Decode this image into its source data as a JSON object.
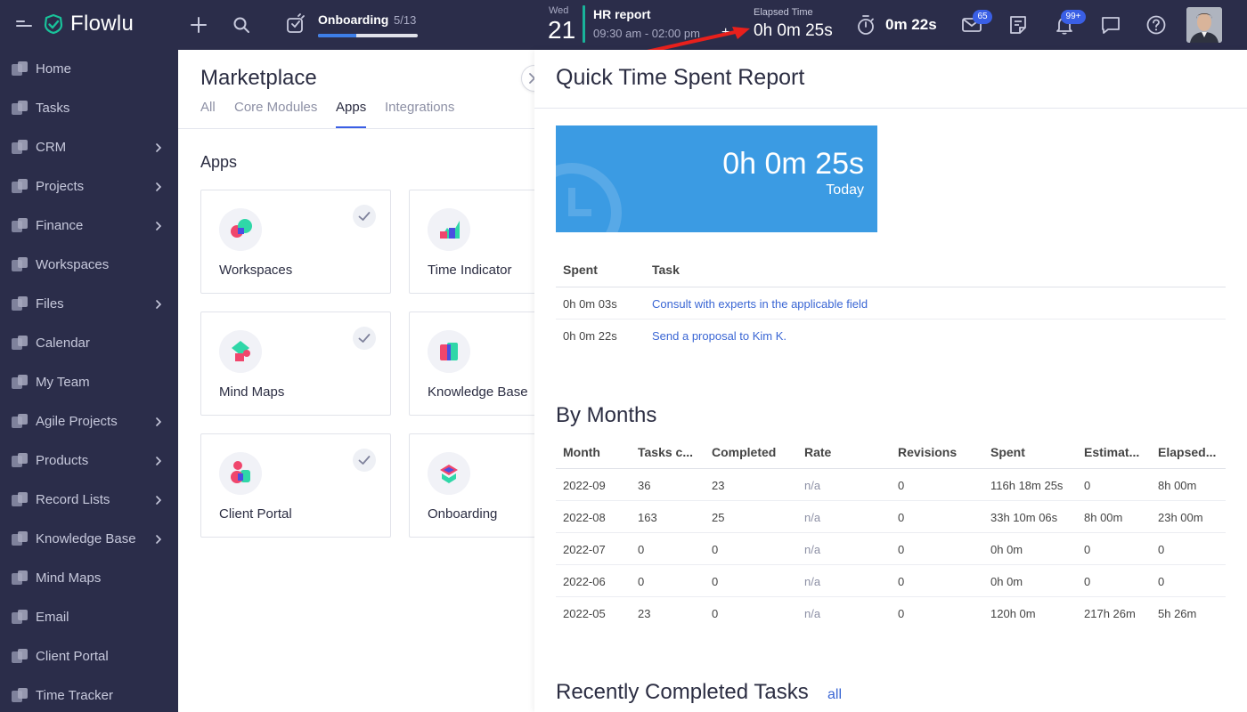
{
  "topbar": {
    "logo": "Flowlu",
    "onboarding_label": "Onboarding",
    "onboarding_count": "5/13",
    "onboarding_progress": 0.38,
    "calendar_day_name": "Wed",
    "calendar_day_number": "21",
    "event_title": "HR report",
    "event_time": "09:30 am - 02:00 pm",
    "elapsed_label": "Elapsed Time",
    "elapsed_value": "0h 0m 25s",
    "timer_value": "0m 22s",
    "mail_badge": "65",
    "notifications_badge": "99+"
  },
  "sidebar": {
    "items": [
      {
        "label": "Home",
        "icon": "home-icon",
        "has_children": false
      },
      {
        "label": "Tasks",
        "icon": "tasks-icon",
        "has_children": false
      },
      {
        "label": "CRM",
        "icon": "crm-icon",
        "has_children": true
      },
      {
        "label": "Projects",
        "icon": "projects-icon",
        "has_children": true
      },
      {
        "label": "Finance",
        "icon": "finance-icon",
        "has_children": true
      },
      {
        "label": "Workspaces",
        "icon": "workspaces-icon",
        "has_children": false
      },
      {
        "label": "Files",
        "icon": "files-icon",
        "has_children": true
      },
      {
        "label": "Calendar",
        "icon": "calendar-icon",
        "has_children": false
      },
      {
        "label": "My Team",
        "icon": "team-icon",
        "has_children": false
      },
      {
        "label": "Agile Projects",
        "icon": "agile-icon",
        "has_children": true
      },
      {
        "label": "Products",
        "icon": "products-icon",
        "has_children": true
      },
      {
        "label": "Record Lists",
        "icon": "record-lists-icon",
        "has_children": true
      },
      {
        "label": "Knowledge Base",
        "icon": "knowledge-base-icon",
        "has_children": true
      },
      {
        "label": "Mind Maps",
        "icon": "mind-maps-icon",
        "has_children": false
      },
      {
        "label": "Email",
        "icon": "email-icon",
        "has_children": false
      },
      {
        "label": "Client Portal",
        "icon": "client-portal-icon",
        "has_children": false
      },
      {
        "label": "Time Tracker",
        "icon": "time-tracker-icon",
        "has_children": false
      }
    ]
  },
  "marketplace": {
    "title": "Marketplace",
    "tabs": [
      {
        "label": "All",
        "active": false
      },
      {
        "label": "Core Modules",
        "active": false
      },
      {
        "label": "Apps",
        "active": true
      },
      {
        "label": "Integrations",
        "active": false
      }
    ],
    "section_title": "Apps",
    "apps": [
      {
        "name": "Workspaces",
        "installed": true
      },
      {
        "name": "Time Indicator",
        "installed": false
      },
      {
        "name": "Mind Maps",
        "installed": true
      },
      {
        "name": "Knowledge Base",
        "installed": false
      },
      {
        "name": "Client Portal",
        "installed": true
      },
      {
        "name": "Onboarding",
        "installed": false
      }
    ]
  },
  "report": {
    "title": "Quick Time Spent Report",
    "today_value": "0h 0m 25s",
    "today_label": "Today",
    "spent_table": {
      "headers": [
        "Spent",
        "Task"
      ],
      "rows": [
        {
          "spent": "0h 0m 03s",
          "task": "Consult with experts in the applicable field"
        },
        {
          "spent": "0h 0m 22s",
          "task": "Send a proposal to Kim K."
        }
      ]
    },
    "months_title": "By Months",
    "months_table": {
      "headers": [
        "Month",
        "Tasks c...",
        "Completed",
        "Rate",
        "Revisions",
        "Spent",
        "Estimat...",
        "Elapsed..."
      ],
      "rows": [
        [
          "2022-09",
          "36",
          "23",
          "n/a",
          "0",
          "116h 18m 25s",
          "0",
          "8h 00m"
        ],
        [
          "2022-08",
          "163",
          "25",
          "n/a",
          "0",
          "33h 10m 06s",
          "8h 00m",
          "23h 00m"
        ],
        [
          "2022-07",
          "0",
          "0",
          "n/a",
          "0",
          "0h 0m",
          "0",
          "0"
        ],
        [
          "2022-06",
          "0",
          "0",
          "n/a",
          "0",
          "0h 0m",
          "0",
          "0"
        ],
        [
          "2022-05",
          "23",
          "0",
          "n/a",
          "0",
          "120h 0m",
          "217h 26m",
          "5h 26m"
        ]
      ]
    },
    "recent_title": "Recently Completed Tasks",
    "recent_link": "all"
  }
}
